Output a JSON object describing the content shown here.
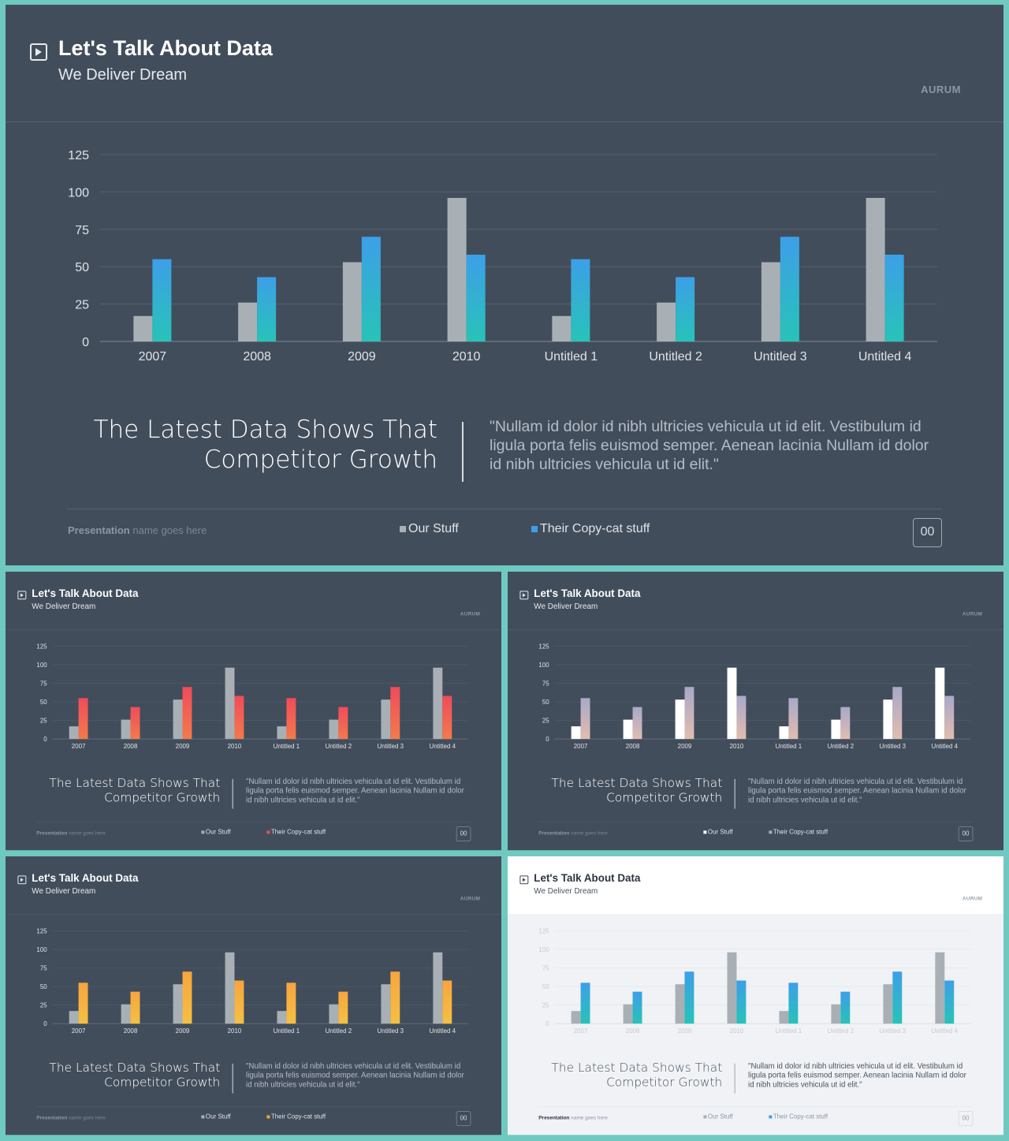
{
  "slide": {
    "title": "Let's Talk About Data",
    "subtitle": "We Deliver Dream",
    "brand": "AURUM",
    "headline_line1": "The Latest Data Shows That",
    "headline_line2": "Competitor Growth",
    "quote": "\"Nullam id dolor id nibh ultricies vehicula ut id elit. Vestibulum id ligula porta felis euismod semper. Aenean lacinia Nullam id dolor id nibh ultricies vehicula ut id elit.\"",
    "presentation_bold": "Presentation",
    "presentation_rest": " name goes here",
    "page_number": "00"
  },
  "chart_data": {
    "type": "bar",
    "categories": [
      "2007",
      "2008",
      "2009",
      "2010",
      "Untitled 1",
      "Untitled 2",
      "Untitled 3",
      "Untitled 4"
    ],
    "series": [
      {
        "name": "Our Stuff",
        "values": [
          17,
          26,
          53,
          96,
          17,
          26,
          53,
          96
        ]
      },
      {
        "name": "Their Copy-cat stuff",
        "values": [
          55,
          43,
          70,
          58,
          55,
          43,
          70,
          58
        ]
      }
    ],
    "yticks": [
      "0",
      "25",
      "50",
      "75",
      "100",
      "125"
    ],
    "ylim": [
      0,
      125
    ],
    "grid": true
  },
  "legend": {
    "our_stuff": "Our Stuff",
    "their_stuff": "Their Copy-cat stuff"
  },
  "themes": [
    {
      "id": "main",
      "mode": "dark",
      "our": "#a8b0b6",
      "their_top": "#3d9fe8",
      "their_bottom": "#27c3b8",
      "our_legend": "#a8b0b6",
      "their_legend": "#3d9fe8",
      "axis_text": "#dfe3e8"
    },
    {
      "id": "red",
      "mode": "dark",
      "our": "#a8b0b6",
      "their_top": "#f04b5b",
      "their_bottom": "#f47a4a",
      "our_legend": "#a8b0b6",
      "their_legend": "#f04b5b",
      "axis_text": "#dfe3e8"
    },
    {
      "id": "pastel",
      "mode": "dark",
      "our": "#ffffff",
      "their_top": "#a8a9c9",
      "their_bottom": "#e2bcb0",
      "our_legend": "#ffffff",
      "their_legend": "#a8a9c9",
      "axis_text": "#dfe3e8"
    },
    {
      "id": "orange",
      "mode": "dark",
      "our": "#a8b0b6",
      "their_top": "#f7a53f",
      "their_bottom": "#f5c043",
      "our_legend": "#a8b0b6",
      "their_legend": "#f7a53f",
      "axis_text": "#dfe3e8"
    },
    {
      "id": "light",
      "mode": "light",
      "our": "#a8b0b6",
      "their_top": "#3d9fe8",
      "their_bottom": "#27c3b8",
      "our_legend": "#a8b0b6",
      "their_legend": "#3d9fe8",
      "axis_text": "#c6ccd4"
    }
  ]
}
